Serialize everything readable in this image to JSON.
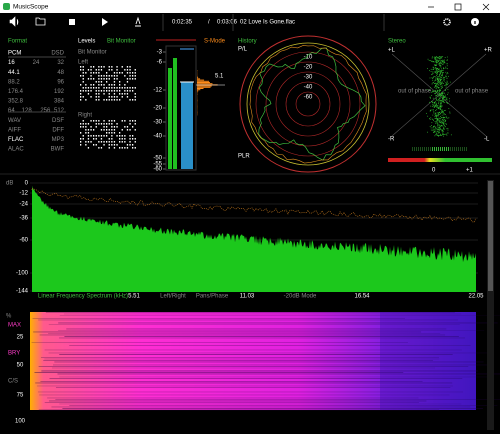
{
  "window": {
    "title": "MusicScope"
  },
  "toolbar": {
    "position": "0:02:35",
    "separator": "/",
    "duration": "0:03:06",
    "track": "02 Love Is Gone.flac"
  },
  "format": {
    "title": "Format",
    "rows": [
      [
        "PCM",
        "DSD"
      ],
      [
        "16",
        "24",
        "32"
      ],
      [
        "44.1",
        "48"
      ],
      [
        "88.2",
        "96"
      ],
      [
        "176.4",
        "192"
      ],
      [
        "352.8",
        "384"
      ],
      [
        "64",
        "128",
        "256",
        "512"
      ],
      [
        "WAV",
        "DSF"
      ],
      [
        "AIFF",
        "DFF"
      ],
      [
        "FLAC",
        "MP3"
      ],
      [
        "ALAC",
        "BWF"
      ]
    ]
  },
  "levels": {
    "title": "Levels",
    "mode": "Bit Monitor",
    "subtitle": "Bit Monitor",
    "left": "Left",
    "right": "Right"
  },
  "meter": {
    "mode": "S-Mode",
    "scale": [
      "-3",
      "-6",
      "-12",
      "-20",
      "-30",
      "-40",
      "-50",
      "-55",
      "-60"
    ],
    "channel": "5.1",
    "unit": "LU"
  },
  "history": {
    "title": "History",
    "top": "P/L",
    "bottom": "PLR",
    "rings": [
      "-10",
      "-20",
      "-30",
      "-40",
      "-60"
    ]
  },
  "stereo": {
    "title": "Stereo",
    "top_left": "+L",
    "top_right": "+R",
    "bottom_left": "-R",
    "bottom_right": "-L",
    "phase_left": "out of phase",
    "phase_right": "out of phase",
    "balance_left": "0",
    "balance_right": "+1"
  },
  "spectrum": {
    "unit": "dB",
    "yticks": [
      "0",
      "-12",
      "-24",
      "-36",
      "-60",
      "-100",
      "-144"
    ],
    "axis_title": "Linear Frequency Spectrum (kHz)",
    "xticks": [
      "5.51",
      "11.03",
      "16.54",
      "22.05"
    ],
    "modes": [
      "Left/Right",
      "Pans/Phase",
      "-20dB Mode"
    ]
  },
  "spectrogram": {
    "unit": "%",
    "yticks": [
      "25",
      "50",
      "75",
      "100"
    ],
    "markers": [
      "MAX",
      "BRY",
      "C/S"
    ]
  }
}
